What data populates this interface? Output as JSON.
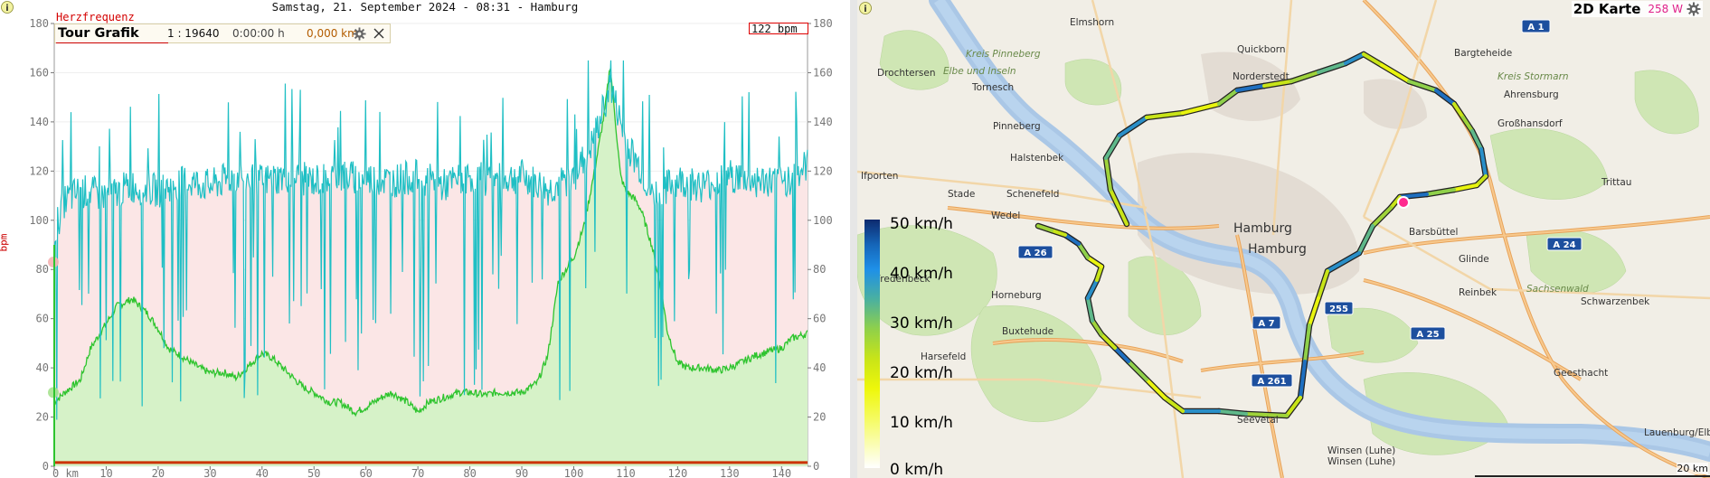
{
  "chart": {
    "title": "Samstag, 21. September 2024 - 08:31 - Hamburg",
    "series_label": "Herzfrequenz",
    "axis_unit": "bpm",
    "tour_panel": {
      "title": "Tour Grafik",
      "scale": "1 : 19640",
      "time": "0:00:00 h",
      "distance": "0,000 km"
    },
    "current_bpm": "122 bpm"
  },
  "chart_data": {
    "type": "line",
    "ylim": [
      0,
      180
    ],
    "y_ticks": [
      0,
      20,
      40,
      60,
      80,
      100,
      120,
      140,
      160,
      180
    ],
    "xlim": [
      0,
      145
    ],
    "x_ticks": [
      "0 km",
      "10",
      "20",
      "30",
      "40",
      "50",
      "60",
      "70",
      "80",
      "90",
      "100",
      "110",
      "120",
      "130",
      "140"
    ],
    "ylabel": "bpm",
    "series": [
      {
        "name": "Herzfrequenz",
        "color": "#1fbfc4",
        "x": [
          0,
          2,
          5,
          10,
          15,
          20,
          25,
          30,
          35,
          40,
          45,
          50,
          55,
          60,
          65,
          70,
          75,
          80,
          85,
          90,
          95,
          100,
          103,
          105,
          107,
          110,
          113,
          115,
          120,
          125,
          130,
          135,
          140,
          145
        ],
        "y": [
          95,
          108,
          112,
          110,
          114,
          112,
          116,
          114,
          118,
          116,
          118,
          116,
          118,
          117,
          116,
          118,
          114,
          118,
          116,
          118,
          112,
          118,
          128,
          140,
          155,
          132,
          120,
          110,
          116,
          114,
          118,
          116,
          115,
          122
        ]
      },
      {
        "color": "#2ec42e",
        "x": [
          0,
          2,
          5,
          7,
          10,
          12,
          15,
          18,
          20,
          22,
          25,
          28,
          30,
          33,
          35,
          38,
          40,
          42,
          45,
          48,
          50,
          53,
          55,
          58,
          60,
          63,
          65,
          68,
          70,
          72,
          75,
          78,
          80,
          83,
          85,
          88,
          90,
          93,
          95,
          97,
          100,
          102,
          104,
          106,
          107,
          109,
          110,
          112,
          113,
          115,
          117,
          118,
          120,
          122,
          125,
          128,
          130,
          133,
          135,
          138,
          140,
          142,
          145
        ],
        "y": [
          26,
          30,
          35,
          48,
          58,
          65,
          68,
          62,
          56,
          48,
          44,
          40,
          38,
          38,
          36,
          42,
          46,
          44,
          38,
          32,
          30,
          26,
          26,
          22,
          24,
          28,
          30,
          26,
          22,
          26,
          28,
          30,
          30,
          29,
          30,
          30,
          30,
          34,
          45,
          75,
          85,
          98,
          120,
          145,
          163,
          118,
          112,
          108,
          104,
          90,
          70,
          55,
          42,
          40,
          40,
          39,
          40,
          43,
          45,
          47,
          48,
          52,
          54
        ]
      }
    ]
  },
  "map": {
    "title": "2D Karte",
    "power": "258 W",
    "legend": [
      "50  km/h",
      "40  km/h",
      "30  km/h",
      "20  km/h",
      "10  km/h",
      "0  km/h"
    ],
    "scale_label": "20 km",
    "places": [
      "Elmshorn",
      "Quickborn",
      "Bargteheide",
      "Drochtersen",
      "Elbe und Inseln",
      "Kreis Pinneberg",
      "Tornesch",
      "Norderstedt",
      "Kreis Stormarn",
      "Pinneberg",
      "Ahrensburg",
      "Halstenbek",
      "Großhansdorf",
      "Ifporten",
      "Stade",
      "Schenefeld",
      "Trittau",
      "Wedel",
      "Barsbüttel",
      "Hamburg",
      "Hamburg",
      "Fredenbeck",
      "Glinde",
      "Horneburg",
      "Reinbek",
      "Sachsenwald",
      "Schwarzenbek",
      "Buxtehude",
      "Harsefeld",
      "Geesthacht",
      "Seevetal",
      "Winsen (Luhe)",
      "Winsen (Luhe)",
      "Lauenburg/Elbe"
    ],
    "roads": [
      "A 1",
      "A 26",
      "A 24",
      "A 7",
      "255",
      "A 25",
      "A 261"
    ]
  }
}
